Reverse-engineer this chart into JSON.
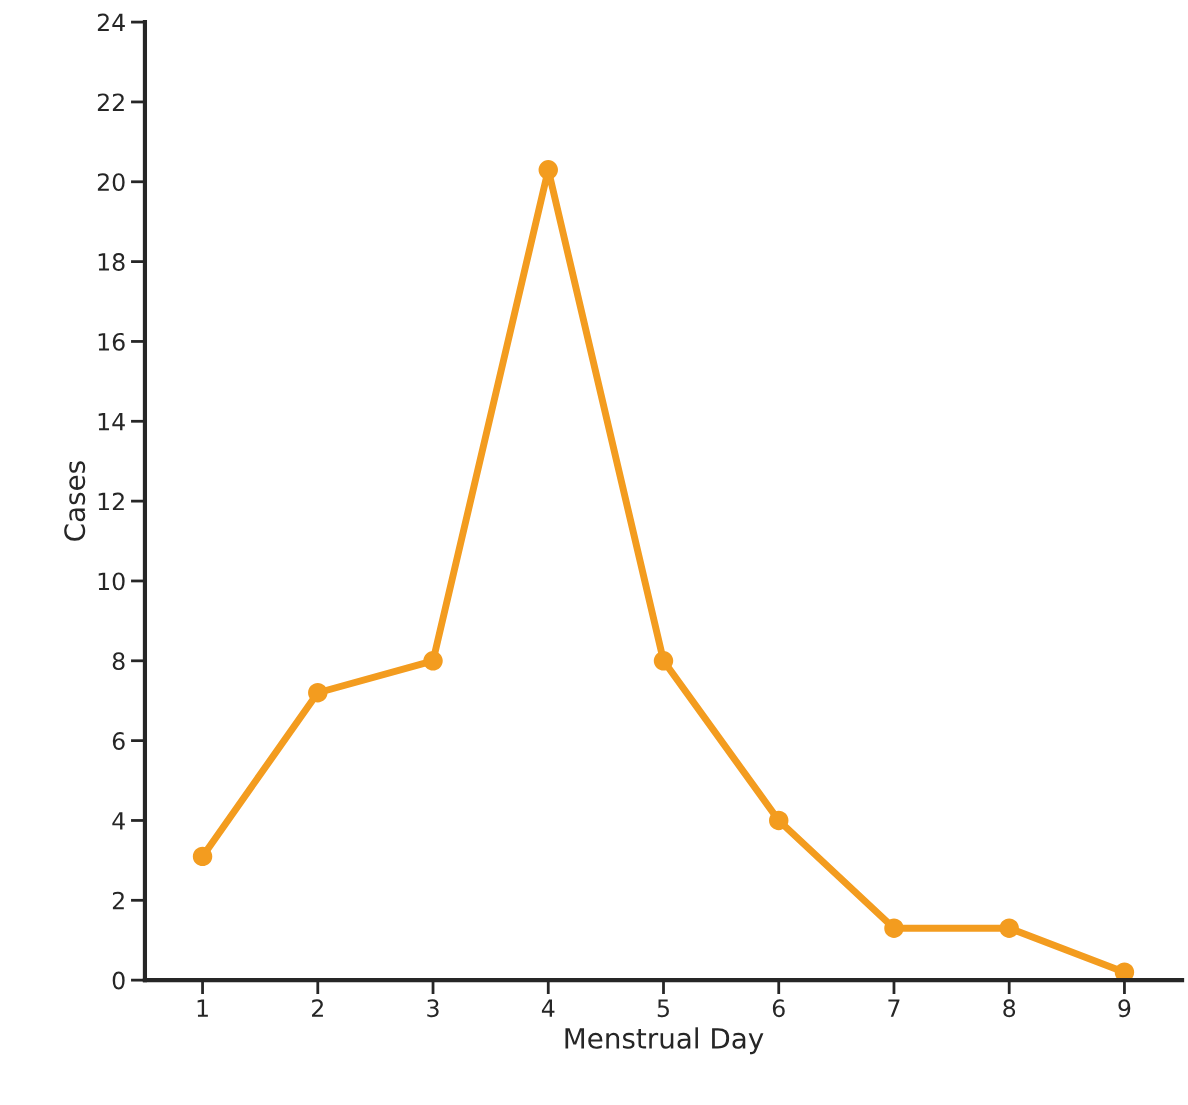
{
  "chart_data": {
    "type": "line",
    "xlabel": "Menstrual Day",
    "ylabel": "Cases",
    "x": [
      1,
      2,
      3,
      4,
      5,
      6,
      7,
      8,
      9
    ],
    "series": [
      {
        "color": "#f39c1f",
        "values": [
          3.1,
          7.2,
          8.0,
          20.3,
          8.0,
          4.0,
          1.3,
          1.3,
          0.2
        ]
      }
    ],
    "xlim": [
      0.5,
      9.5
    ],
    "xticks": [
      1,
      2,
      3,
      4,
      5,
      6,
      7,
      8,
      9
    ],
    "ylim": [
      0,
      24
    ],
    "yticks": [
      0,
      2,
      4,
      6,
      8,
      10,
      12,
      14,
      16,
      18,
      20,
      22,
      24
    ],
    "marker": "circle",
    "line_style": "solid"
  }
}
